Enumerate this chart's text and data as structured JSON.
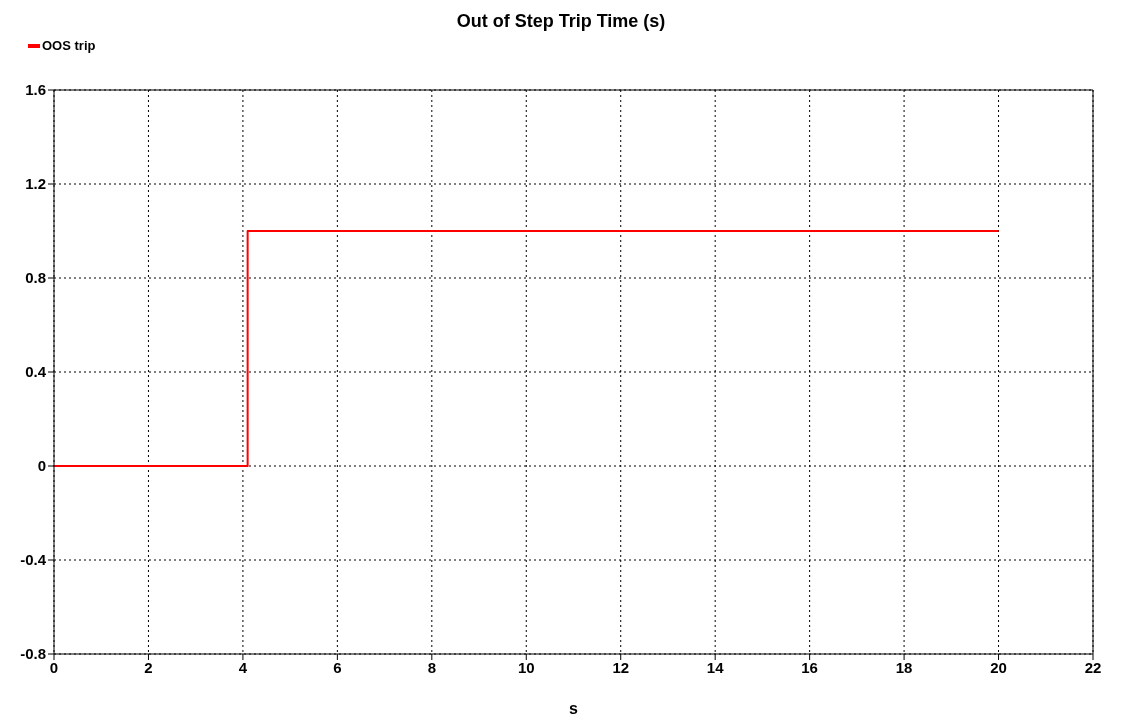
{
  "chart_data": {
    "type": "step",
    "title": "Out of Step Trip Time (s)",
    "xlabel": "s",
    "x": [
      0,
      4.1,
      20
    ],
    "series": [
      {
        "name": "OOS trip",
        "color": "#ff0000",
        "values": [
          0,
          1,
          1
        ]
      }
    ],
    "xlim": [
      0,
      22
    ],
    "xticks": [
      0,
      2,
      4,
      6,
      8,
      10,
      12,
      14,
      16,
      18,
      20,
      22
    ],
    "ylim": [
      -0.8,
      1.6
    ],
    "yticks": [
      -0.8,
      -0.4,
      0,
      0.4,
      0.8,
      1.2,
      1.6
    ],
    "grid": true,
    "legend": "top left",
    "marker": "none",
    "line_style": "solid"
  }
}
